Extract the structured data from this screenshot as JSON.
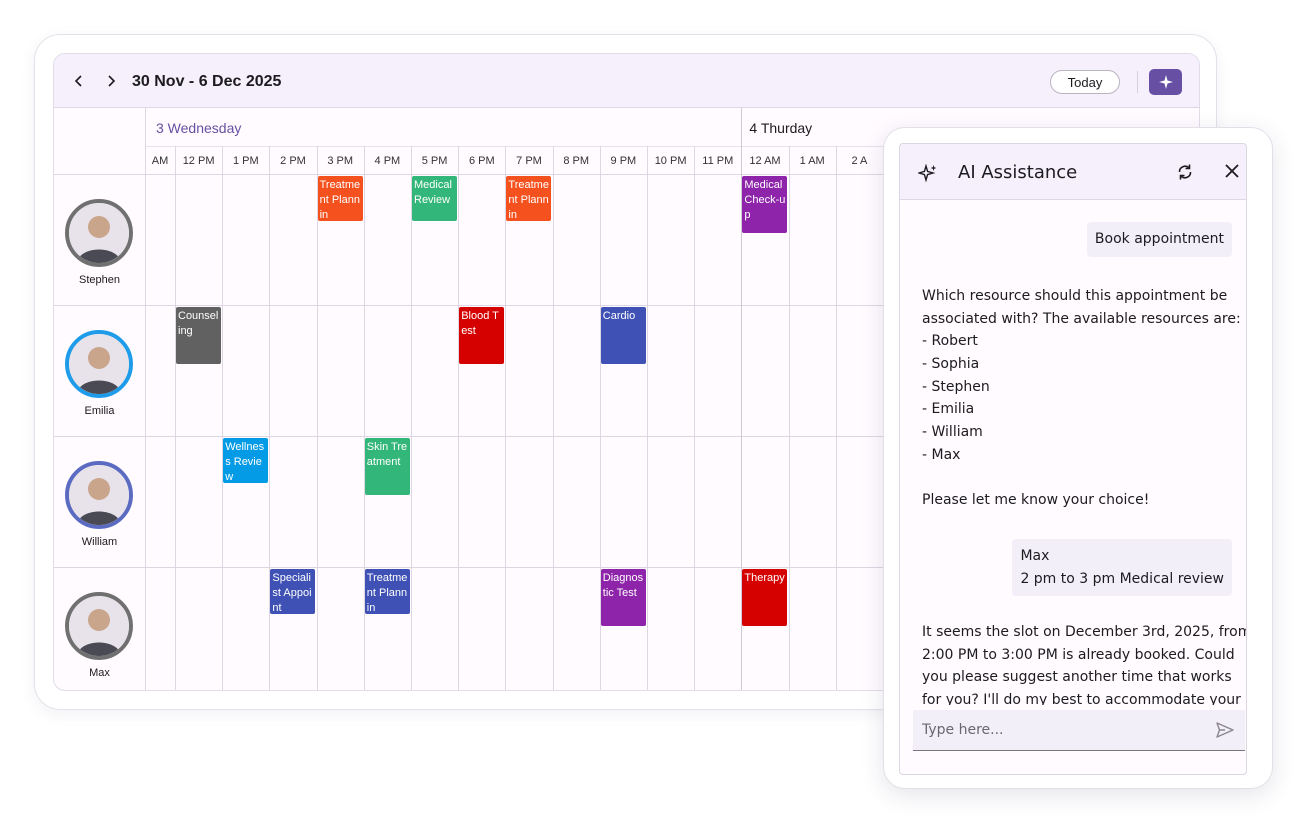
{
  "scheduler": {
    "date_range": "30 Nov - 6 Dec 2025",
    "today_label": "Today",
    "days": [
      {
        "label": "3 Wednesday",
        "color": "#6750a4"
      },
      {
        "label": "4 Thurday",
        "color": "#1c1b1f"
      }
    ],
    "time_slots": [
      "AM",
      "12 PM",
      "1 PM",
      "2 PM",
      "3 PM",
      "4 PM",
      "5 PM",
      "6 PM",
      "7 PM",
      "8 PM",
      "9 PM",
      "10 PM",
      "11 PM",
      "12 AM",
      "1 AM",
      "2 A"
    ],
    "resources": [
      {
        "name": "Stephen",
        "ring": "#707070"
      },
      {
        "name": "Emilia",
        "ring": "#1e9be9"
      },
      {
        "name": "William",
        "ring": "#5b6bc2"
      },
      {
        "name": "Max",
        "ring": "#707070"
      }
    ],
    "appointments": [
      {
        "row": 0,
        "slot": 4,
        "text": "Treatment Plannin",
        "color": "#f4511e",
        "h": 45
      },
      {
        "row": 0,
        "slot": 6,
        "text": "Medical Review",
        "color": "#33b679",
        "h": 45
      },
      {
        "row": 0,
        "slot": 8,
        "text": "Treatment Plannin",
        "color": "#f4511e",
        "h": 45
      },
      {
        "row": 0,
        "slot": 13,
        "text": "Medical Check-up",
        "color": "#8e24aa",
        "h": 57
      },
      {
        "row": 1,
        "slot": 1,
        "text": "Counseling",
        "color": "#616161",
        "h": 57
      },
      {
        "row": 1,
        "slot": 7,
        "text": "Blood Test",
        "color": "#d50000",
        "h": 57
      },
      {
        "row": 1,
        "slot": 10,
        "text": "Cardio",
        "color": "#3f51b5",
        "h": 57
      },
      {
        "row": 2,
        "slot": 2,
        "text": "Wellness Review",
        "color": "#039be5",
        "h": 45
      },
      {
        "row": 2,
        "slot": 5,
        "text": "Skin Treatment",
        "color": "#33b679",
        "h": 57
      },
      {
        "row": 3,
        "slot": 3,
        "text": "Specialist Appoint",
        "color": "#3f51b5",
        "h": 45
      },
      {
        "row": 3,
        "slot": 5,
        "text": "Treatment Plannin",
        "color": "#3f51b5",
        "h": 45
      },
      {
        "row": 3,
        "slot": 10,
        "text": "Diagnostic Test",
        "color": "#8e24aa",
        "h": 57
      },
      {
        "row": 3,
        "slot": 13,
        "text": "Therapy",
        "color": "#d50000",
        "h": 57
      }
    ]
  },
  "ai": {
    "title": "AI Assistance",
    "icons": {
      "header": "sparkle-icon",
      "refresh": "refresh-icon",
      "close": "close-icon",
      "send": "send-icon"
    },
    "messages": [
      {
        "role": "user",
        "lines": [
          "Book appointment"
        ]
      },
      {
        "role": "assistant",
        "lines": [
          "Which resource should this appointment be",
          "associated with? The available resources are:",
          "- Robert",
          "- Sophia",
          "- Stephen",
          "- Emilia",
          "- William",
          "- Max",
          "",
          "Please let me know your choice!"
        ]
      },
      {
        "role": "user",
        "lines": [
          "Max",
          "2 pm to 3 pm Medical review"
        ]
      },
      {
        "role": "assistant",
        "lines": [
          "It seems the slot on December 3rd, 2025, from",
          "2:00 PM to 3:00 PM is already booked. Could",
          "you please suggest another time that works",
          "for you? I'll do my best to accommodate your"
        ]
      }
    ],
    "input_placeholder": "Type here..."
  }
}
